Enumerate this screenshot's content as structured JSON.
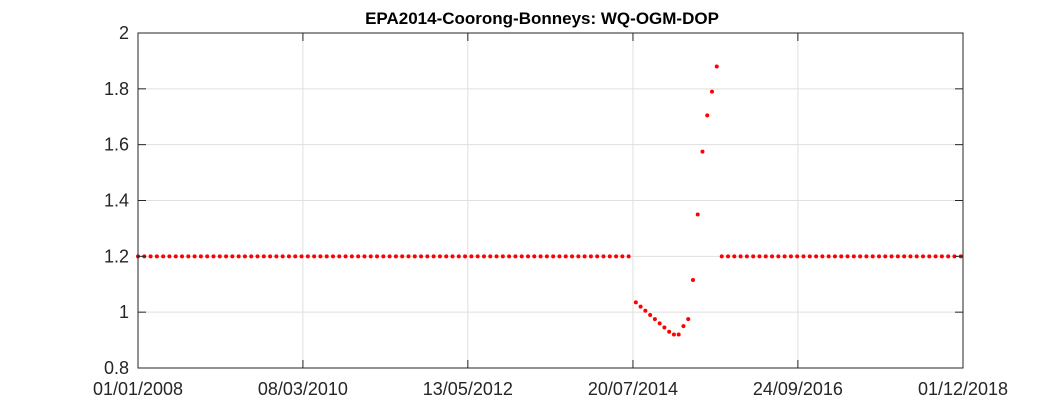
{
  "chart_data": {
    "type": "scatter",
    "title": "EPA2014-Coorong-Bonneys: WQ-OGM-DOP",
    "xlabel": "",
    "ylabel": "",
    "x_is_date": true,
    "xlim": [
      "2008-01-01",
      "2018-12-01"
    ],
    "ylim": [
      0.8,
      2
    ],
    "x_ticks": [
      {
        "date": "2008-01-01",
        "label": "01/01/2008"
      },
      {
        "date": "2010-03-08",
        "label": "08/03/2010"
      },
      {
        "date": "2012-05-13",
        "label": "13/05/2012"
      },
      {
        "date": "2014-07-20",
        "label": "20/07/2014"
      },
      {
        "date": "2016-09-24",
        "label": "24/09/2016"
      },
      {
        "date": "2018-12-01",
        "label": "01/12/2018"
      }
    ],
    "y_ticks": [
      0.8,
      1,
      1.2,
      1.4,
      1.6,
      1.8,
      2
    ],
    "y_tick_labels": [
      "0.8",
      "1",
      "1.2",
      "1.4",
      "1.6",
      "1.8",
      "2"
    ],
    "grid": true,
    "marker_color": "#ff0000",
    "series": [
      {
        "segments": [
          {
            "start": "2008-01-01",
            "end": "2014-07-13",
            "step_days": 30.4,
            "value": 1.2
          },
          {
            "points": [
              [
                "2014-08-03",
                1.035
              ],
              [
                "2014-08-26",
                1.02
              ],
              [
                "2014-09-18",
                1.005
              ],
              [
                "2014-10-11",
                0.99
              ],
              [
                "2014-11-03",
                0.975
              ],
              [
                "2014-11-26",
                0.96
              ],
              [
                "2014-12-19",
                0.945
              ],
              [
                "2015-01-11",
                0.93
              ],
              [
                "2015-02-03",
                0.92
              ],
              [
                "2015-02-26",
                0.92
              ],
              [
                "2015-03-21",
                0.95
              ],
              [
                "2015-04-13",
                0.975
              ],
              [
                "2015-05-06",
                1.115
              ],
              [
                "2015-05-29",
                1.35
              ],
              [
                "2015-06-21",
                1.575
              ],
              [
                "2015-07-14",
                1.705
              ],
              [
                "2015-08-06",
                1.79
              ],
              [
                "2015-08-29",
                1.88
              ]
            ]
          },
          {
            "start": "2015-09-22",
            "end": "2018-12-01",
            "step_days": 30.4,
            "value": 1.2
          }
        ]
      }
    ]
  }
}
